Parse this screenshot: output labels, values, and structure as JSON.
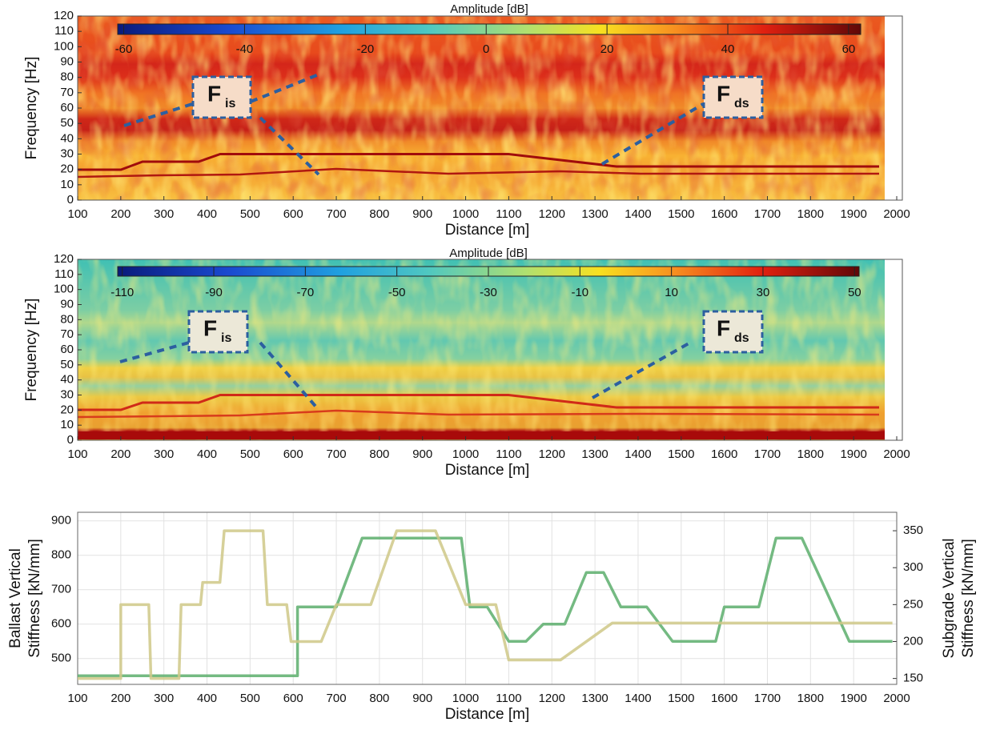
{
  "chart_data": [
    {
      "type": "spectrogram",
      "x_label": "Distance [m]",
      "y_label": "Frequency [Hz]",
      "xlim": [
        100,
        2000
      ],
      "ylim": [
        0,
        120
      ],
      "xticks": [
        100,
        200,
        300,
        400,
        500,
        600,
        700,
        800,
        900,
        1000,
        1100,
        1200,
        1300,
        1400,
        1500,
        1600,
        1700,
        1800,
        1900,
        2000
      ],
      "yticks": [
        0,
        10,
        20,
        30,
        40,
        50,
        60,
        70,
        80,
        90,
        100,
        110,
        120
      ],
      "colorbar": {
        "title": "Amplitude [dB]",
        "lim": [
          -61,
          62
        ],
        "ticks": [
          -60,
          -40,
          -20,
          0,
          20,
          40,
          60
        ]
      },
      "annotations": [
        {
          "text": "F",
          "sub": "is"
        },
        {
          "text": "F",
          "sub": "ds"
        }
      ]
    },
    {
      "type": "spectrogram",
      "x_label": "Distance [m]",
      "y_label": "Frequency [Hz]",
      "xlim": [
        100,
        2000
      ],
      "ylim": [
        0,
        120
      ],
      "xticks": [
        100,
        200,
        300,
        400,
        500,
        600,
        700,
        800,
        900,
        1000,
        1100,
        1200,
        1300,
        1400,
        1500,
        1600,
        1700,
        1800,
        1900,
        2000
      ],
      "yticks": [
        0,
        10,
        20,
        30,
        40,
        50,
        60,
        70,
        80,
        90,
        100,
        110,
        120
      ],
      "colorbar": {
        "title": "Amplitude [dB]",
        "lim": [
          -111,
          51
        ],
        "ticks": [
          -110,
          -90,
          -70,
          -50,
          -30,
          -10,
          10,
          30,
          50
        ]
      },
      "annotations": [
        {
          "text": "F",
          "sub": "is"
        },
        {
          "text": "F",
          "sub": "ds"
        }
      ]
    },
    {
      "type": "line",
      "x_label": "Distance [m]",
      "y_label": [
        "Ballast Vertical",
        "Stiffness [kN/mm]"
      ],
      "y_label_color": "#2f9a3c",
      "y2_label": [
        "Subgrade Vertical",
        "Stiffness [kN/mm]"
      ],
      "y2_label_color": "#a89f2c",
      "xlim": [
        100,
        2000
      ],
      "ylim": [
        425,
        925
      ],
      "y2lim": [
        142,
        375
      ],
      "grid": true,
      "xticks": [
        100,
        200,
        300,
        400,
        500,
        600,
        700,
        800,
        900,
        1000,
        1100,
        1200,
        1300,
        1400,
        1500,
        1600,
        1700,
        1800,
        1900,
        2000
      ],
      "yticks": [
        500,
        600,
        700,
        800,
        900
      ],
      "y2ticks": [
        150,
        200,
        250,
        300,
        350
      ],
      "series": [
        {
          "color": "#5cae6c",
          "axis": "y",
          "x": [
            100,
            610,
            610,
            700,
            760,
            990,
            1010,
            1050,
            1100,
            1140,
            1180,
            1230,
            1280,
            1320,
            1360,
            1420,
            1480,
            1580,
            1600,
            1680,
            1720,
            1780,
            1890,
            1990
          ],
          "values": [
            450,
            450,
            650,
            650,
            850,
            850,
            650,
            650,
            550,
            550,
            600,
            600,
            750,
            750,
            650,
            650,
            550,
            550,
            650,
            650,
            850,
            850,
            550,
            550
          ]
        },
        {
          "color": "#cfc887",
          "axis": "y2",
          "x": [
            100,
            200,
            200,
            265,
            270,
            335,
            340,
            385,
            390,
            430,
            440,
            530,
            540,
            585,
            595,
            665,
            700,
            780,
            840,
            930,
            1000,
            1070,
            1100,
            1220,
            1340,
            1990
          ],
          "values": [
            150,
            150,
            250,
            250,
            150,
            150,
            250,
            250,
            280,
            280,
            350,
            350,
            250,
            250,
            200,
            200,
            250,
            250,
            350,
            350,
            250,
            250,
            175,
            175,
            225,
            225
          ]
        }
      ]
    }
  ]
}
